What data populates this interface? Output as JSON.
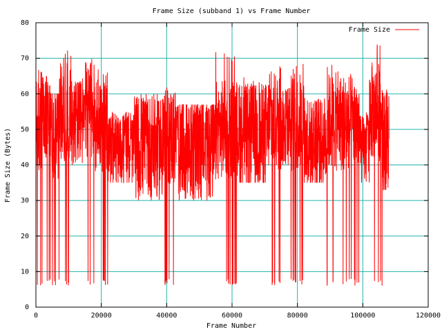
{
  "chart_data": {
    "type": "line",
    "title": "Frame Size (subband 1) vs Frame Number",
    "xlabel": "Frame Number",
    "ylabel": "Frame Size (Bytes)",
    "xlim": [
      0,
      120000
    ],
    "ylim": [
      0,
      80
    ],
    "xticks": [
      0,
      20000,
      40000,
      60000,
      80000,
      100000,
      120000
    ],
    "yticks": [
      0,
      10,
      20,
      30,
      40,
      50,
      60,
      70,
      80
    ],
    "grid": true,
    "legend_position": "top-right",
    "series": [
      {
        "name": "Frame Size",
        "color": "#ff0000",
        "x_start": 0,
        "x_end": 108000,
        "segments": [
          {
            "from": 0,
            "to": 2000,
            "min": 6,
            "max": 69,
            "base": 50
          },
          {
            "from": 2000,
            "to": 4500,
            "min": 6,
            "max": 65,
            "base": 52
          },
          {
            "from": 4500,
            "to": 7000,
            "min": 6,
            "max": 60,
            "base": 50
          },
          {
            "from": 7000,
            "to": 11000,
            "min": 6,
            "max": 73,
            "base": 55
          },
          {
            "from": 11000,
            "to": 15000,
            "min": 40,
            "max": 65,
            "base": 52
          },
          {
            "from": 15000,
            "to": 18000,
            "min": 6,
            "max": 71,
            "base": 55
          },
          {
            "from": 18000,
            "to": 22000,
            "min": 6,
            "max": 68,
            "base": 52
          },
          {
            "from": 22000,
            "to": 30000,
            "min": 35,
            "max": 55,
            "base": 44
          },
          {
            "from": 30000,
            "to": 39000,
            "min": 30,
            "max": 60,
            "base": 45
          },
          {
            "from": 39000,
            "to": 43000,
            "min": 6,
            "max": 62,
            "base": 48
          },
          {
            "from": 43000,
            "to": 55000,
            "min": 27,
            "max": 57,
            "base": 44
          },
          {
            "from": 55000,
            "to": 62000,
            "min": 6,
            "max": 72,
            "base": 50
          },
          {
            "from": 62000,
            "to": 71000,
            "min": 35,
            "max": 65,
            "base": 48
          },
          {
            "from": 71000,
            "to": 75000,
            "min": 6,
            "max": 68,
            "base": 52
          },
          {
            "from": 75000,
            "to": 78000,
            "min": 40,
            "max": 62,
            "base": 50
          },
          {
            "from": 78000,
            "to": 82000,
            "min": 6,
            "max": 69,
            "base": 52
          },
          {
            "from": 82000,
            "to": 89000,
            "min": 35,
            "max": 60,
            "base": 46
          },
          {
            "from": 89000,
            "to": 99000,
            "min": 6,
            "max": 69,
            "base": 52
          },
          {
            "from": 99000,
            "to": 102000,
            "min": 35,
            "max": 55,
            "base": 44
          },
          {
            "from": 102000,
            "to": 106000,
            "min": 6,
            "max": 74,
            "base": 55
          },
          {
            "from": 106000,
            "to": 108000,
            "min": 33,
            "max": 62,
            "base": 45
          }
        ]
      }
    ]
  }
}
